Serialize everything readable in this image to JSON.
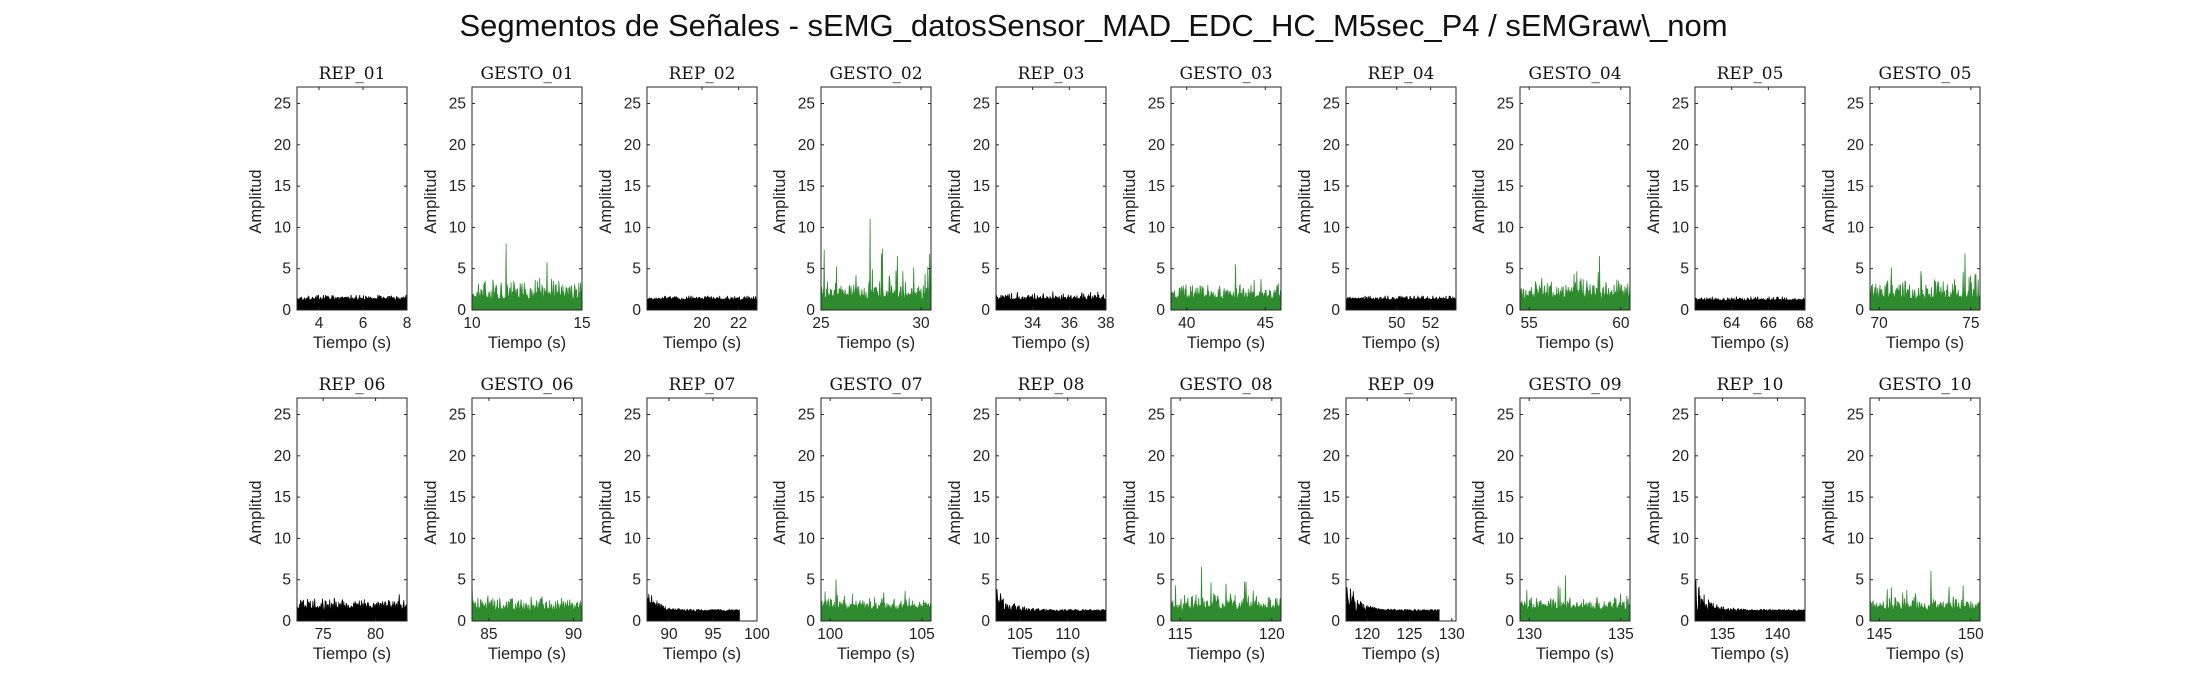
{
  "figure": {
    "title": "Segmentos de Señales - sEMG_datosSensor_MAD_EDC_HC_M5sec_P4 / sEMGraw\\_nom",
    "colors": {
      "rep": "#000000",
      "gesto": "#2e8b2e",
      "axis": "#262626"
    }
  },
  "chart_data": [
    {
      "type": "area",
      "title": "REP_01",
      "xlabel": "Tiempo (s)",
      "ylabel": "Amplitud",
      "xlim": [
        3,
        8
      ],
      "ylim": [
        0,
        27
      ],
      "xticks": [
        4,
        6,
        8
      ],
      "yticks": [
        0,
        5,
        10,
        15,
        20,
        25
      ],
      "series": [
        {
          "kind": "rep",
          "x_range": [
            3,
            8
          ],
          "baseline": 1.2,
          "noise": 0.35,
          "peak": 1.8
        }
      ]
    },
    {
      "type": "area",
      "title": "GESTO_01",
      "xlabel": "Tiempo (s)",
      "ylabel": "Amplitud",
      "xlim": [
        10,
        15
      ],
      "ylim": [
        0,
        27
      ],
      "xticks": [
        10,
        15
      ],
      "yticks": [
        0,
        5,
        10,
        15,
        20,
        25
      ],
      "series": [
        {
          "kind": "gesto",
          "x_range": [
            10,
            15
          ],
          "baseline": 1.3,
          "noise": 1.4,
          "peak": 8.0
        }
      ]
    },
    {
      "type": "area",
      "title": "REP_02",
      "xlabel": "Tiempo (s)",
      "ylabel": "Amplitud",
      "xlim": [
        17,
        23
      ],
      "ylim": [
        0,
        27
      ],
      "xticks": [
        20,
        22
      ],
      "yticks": [
        0,
        5,
        10,
        15,
        20,
        25
      ],
      "series": [
        {
          "kind": "rep",
          "x_range": [
            17,
            23
          ],
          "baseline": 1.2,
          "noise": 0.3,
          "peak": 1.7
        }
      ]
    },
    {
      "type": "area",
      "title": "GESTO_02",
      "xlabel": "Tiempo (s)",
      "ylabel": "Amplitud",
      "xlim": [
        25,
        30.5
      ],
      "ylim": [
        0,
        27
      ],
      "xticks": [
        25,
        30
      ],
      "yticks": [
        0,
        5,
        10,
        15,
        20,
        25
      ],
      "series": [
        {
          "kind": "gesto",
          "x_range": [
            25,
            30.5
          ],
          "baseline": 1.3,
          "noise": 1.1,
          "peak": 11.0
        }
      ]
    },
    {
      "type": "area",
      "title": "REP_03",
      "xlabel": "Tiempo (s)",
      "ylabel": "Amplitud",
      "xlim": [
        32,
        38
      ],
      "ylim": [
        0,
        27
      ],
      "xticks": [
        34,
        36,
        38
      ],
      "yticks": [
        0,
        5,
        10,
        15,
        20,
        25
      ],
      "series": [
        {
          "kind": "rep",
          "x_range": [
            32,
            38
          ],
          "baseline": 1.2,
          "noise": 0.5,
          "peak": 2.2
        }
      ]
    },
    {
      "type": "area",
      "title": "GESTO_03",
      "xlabel": "Tiempo (s)",
      "ylabel": "Amplitud",
      "xlim": [
        39,
        46
      ],
      "ylim": [
        0,
        27
      ],
      "xticks": [
        40,
        45
      ],
      "yticks": [
        0,
        5,
        10,
        15,
        20,
        25
      ],
      "series": [
        {
          "kind": "gesto",
          "x_range": [
            39,
            46
          ],
          "baseline": 1.3,
          "noise": 1.0,
          "peak": 5.5
        }
      ]
    },
    {
      "type": "area",
      "title": "REP_04",
      "xlabel": "Tiempo (s)",
      "ylabel": "Amplitud",
      "xlim": [
        47,
        53.5
      ],
      "ylim": [
        0,
        27
      ],
      "xticks": [
        50,
        52
      ],
      "yticks": [
        0,
        5,
        10,
        15,
        20,
        25
      ],
      "series": [
        {
          "kind": "rep",
          "x_range": [
            47,
            53.5
          ],
          "baseline": 1.2,
          "noise": 0.3,
          "peak": 1.7
        }
      ]
    },
    {
      "type": "area",
      "title": "GESTO_04",
      "xlabel": "Tiempo (s)",
      "ylabel": "Amplitud",
      "xlim": [
        54.5,
        60.5
      ],
      "ylim": [
        0,
        27
      ],
      "xticks": [
        55,
        60
      ],
      "yticks": [
        0,
        5,
        10,
        15,
        20,
        25
      ],
      "series": [
        {
          "kind": "gesto",
          "x_range": [
            54.5,
            60.5
          ],
          "baseline": 1.3,
          "noise": 1.3,
          "peak": 6.5
        }
      ]
    },
    {
      "type": "area",
      "title": "REP_05",
      "xlabel": "Tiempo (s)",
      "ylabel": "Amplitud",
      "xlim": [
        62,
        68
      ],
      "ylim": [
        0,
        27
      ],
      "xticks": [
        64,
        66,
        68
      ],
      "yticks": [
        0,
        5,
        10,
        15,
        20,
        25
      ],
      "series": [
        {
          "kind": "rep",
          "x_range": [
            62,
            68
          ],
          "baseline": 1.1,
          "noise": 0.3,
          "peak": 1.6
        }
      ]
    },
    {
      "type": "area",
      "title": "GESTO_05",
      "xlabel": "Tiempo (s)",
      "ylabel": "Amplitud",
      "xlim": [
        69.5,
        75.5
      ],
      "ylim": [
        0,
        27
      ],
      "xticks": [
        70,
        75
      ],
      "yticks": [
        0,
        5,
        10,
        15,
        20,
        25
      ],
      "series": [
        {
          "kind": "gesto",
          "x_range": [
            69.5,
            75.5
          ],
          "baseline": 1.3,
          "noise": 1.3,
          "peak": 6.8
        }
      ]
    },
    {
      "type": "area",
      "title": "REP_06",
      "xlabel": "Tiempo (s)",
      "ylabel": "Amplitud",
      "xlim": [
        72.5,
        83
      ],
      "ylim": [
        0,
        27
      ],
      "xticks": [
        75,
        80
      ],
      "yticks": [
        0,
        5,
        10,
        15,
        20,
        25
      ],
      "series": [
        {
          "kind": "rep",
          "x_range": [
            72.5,
            83
          ],
          "baseline": 1.4,
          "noise": 0.8,
          "peak": 3.2
        }
      ]
    },
    {
      "type": "area",
      "title": "GESTO_06",
      "xlabel": "Tiempo (s)",
      "ylabel": "Amplitud",
      "xlim": [
        84,
        90.5
      ],
      "ylim": [
        0,
        27
      ],
      "xticks": [
        85,
        90
      ],
      "yticks": [
        0,
        5,
        10,
        15,
        20,
        25
      ],
      "series": [
        {
          "kind": "gesto",
          "x_range": [
            84,
            90.5
          ],
          "baseline": 1.3,
          "noise": 0.9,
          "peak": 4.5
        }
      ]
    },
    {
      "type": "area",
      "title": "REP_07",
      "xlabel": "Tiempo (s)",
      "ylabel": "Amplitud",
      "xlim": [
        87.5,
        100
      ],
      "ylim": [
        0,
        27
      ],
      "xticks": [
        90,
        95,
        100
      ],
      "yticks": [
        0,
        5,
        10,
        15,
        20,
        25
      ],
      "series": [
        {
          "kind": "rep",
          "x_range": [
            87.5,
            98
          ],
          "baseline": 1.1,
          "noise": 0.6,
          "peak": 4.5,
          "onset_decay": true
        }
      ]
    },
    {
      "type": "area",
      "title": "GESTO_07",
      "xlabel": "Tiempo (s)",
      "ylabel": "Amplitud",
      "xlim": [
        99.5,
        105.5
      ],
      "ylim": [
        0,
        27
      ],
      "xticks": [
        100,
        105
      ],
      "yticks": [
        0,
        5,
        10,
        15,
        20,
        25
      ],
      "series": [
        {
          "kind": "gesto",
          "x_range": [
            99.5,
            105.5
          ],
          "baseline": 1.3,
          "noise": 0.9,
          "peak": 5.0
        }
      ]
    },
    {
      "type": "area",
      "title": "REP_08",
      "xlabel": "Tiempo (s)",
      "ylabel": "Amplitud",
      "xlim": [
        102.5,
        114
      ],
      "ylim": [
        0,
        27
      ],
      "xticks": [
        105,
        110
      ],
      "yticks": [
        0,
        5,
        10,
        15,
        20,
        25
      ],
      "series": [
        {
          "kind": "rep",
          "x_range": [
            102.5,
            114
          ],
          "baseline": 1.1,
          "noise": 0.6,
          "peak": 4.8,
          "onset_decay": true
        }
      ]
    },
    {
      "type": "area",
      "title": "GESTO_08",
      "xlabel": "Tiempo (s)",
      "ylabel": "Amplitud",
      "xlim": [
        114.5,
        120.5
      ],
      "ylim": [
        0,
        27
      ],
      "xticks": [
        115,
        120
      ],
      "yticks": [
        0,
        5,
        10,
        15,
        20,
        25
      ],
      "series": [
        {
          "kind": "gesto",
          "x_range": [
            114.5,
            120.5
          ],
          "baseline": 1.3,
          "noise": 1.2,
          "peak": 6.5
        }
      ]
    },
    {
      "type": "area",
      "title": "REP_09",
      "xlabel": "Tiempo (s)",
      "ylabel": "Amplitud",
      "xlim": [
        117.5,
        130.5
      ],
      "ylim": [
        0,
        27
      ],
      "xticks": [
        120,
        125,
        130
      ],
      "yticks": [
        0,
        5,
        10,
        15,
        20,
        25
      ],
      "series": [
        {
          "kind": "rep",
          "x_range": [
            117.5,
            128.5
          ],
          "baseline": 1.1,
          "noise": 0.6,
          "peak": 6.5,
          "onset_decay": true
        }
      ]
    },
    {
      "type": "area",
      "title": "GESTO_09",
      "xlabel": "Tiempo (s)",
      "ylabel": "Amplitud",
      "xlim": [
        129.5,
        135.5
      ],
      "ylim": [
        0,
        27
      ],
      "xticks": [
        130,
        135
      ],
      "yticks": [
        0,
        5,
        10,
        15,
        20,
        25
      ],
      "series": [
        {
          "kind": "gesto",
          "x_range": [
            129.5,
            135.5
          ],
          "baseline": 1.3,
          "noise": 1.0,
          "peak": 5.5
        }
      ]
    },
    {
      "type": "area",
      "title": "REP_10",
      "xlabel": "Tiempo (s)",
      "ylabel": "Amplitud",
      "xlim": [
        132.5,
        142.5
      ],
      "ylim": [
        0,
        27
      ],
      "xticks": [
        135,
        140
      ],
      "yticks": [
        0,
        5,
        10,
        15,
        20,
        25
      ],
      "series": [
        {
          "kind": "rep",
          "x_range": [
            132.5,
            142.5
          ],
          "baseline": 1.1,
          "noise": 0.6,
          "peak": 5.5,
          "onset_decay": true
        }
      ]
    },
    {
      "type": "area",
      "title": "GESTO_10",
      "xlabel": "Tiempo (s)",
      "ylabel": "Amplitud",
      "xlim": [
        144.5,
        150.5
      ],
      "ylim": [
        0,
        27
      ],
      "xticks": [
        145,
        150
      ],
      "yticks": [
        0,
        5,
        10,
        15,
        20,
        25
      ],
      "series": [
        {
          "kind": "gesto",
          "x_range": [
            144.5,
            150.5
          ],
          "baseline": 1.3,
          "noise": 0.9,
          "peak": 6.0
        }
      ]
    }
  ]
}
